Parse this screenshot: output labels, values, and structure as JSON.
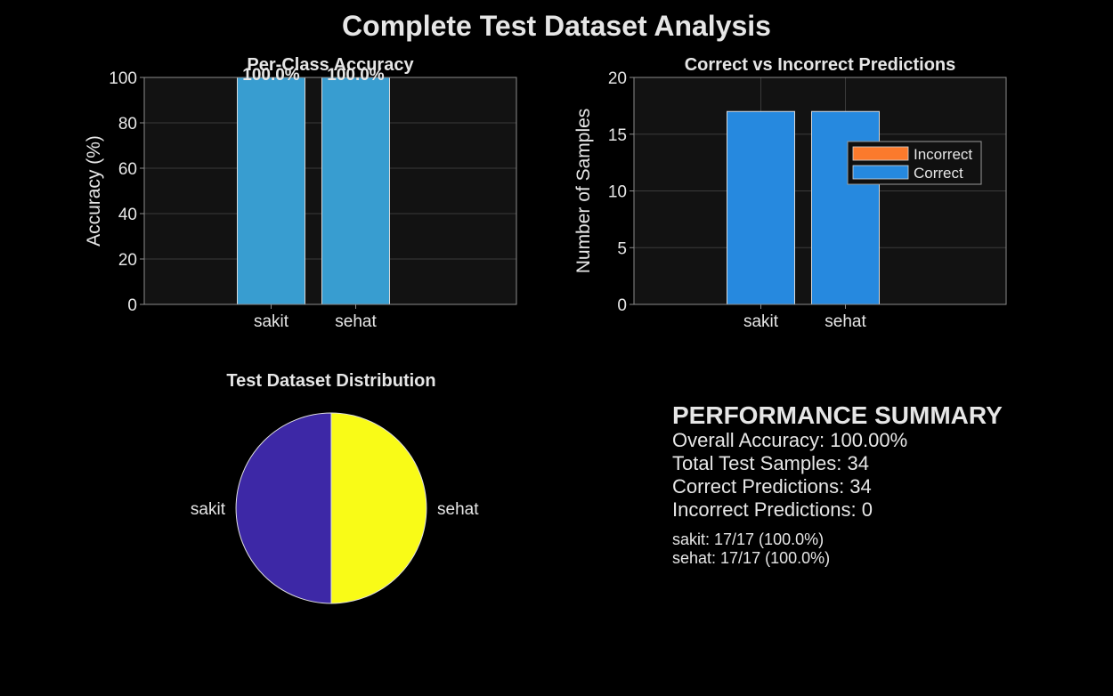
{
  "figure_title": "Complete Test Dataset Analysis",
  "colors": {
    "background": "#000000",
    "axes_bg": "#121212",
    "grid": "#3a3a3a",
    "axis_line": "#8c8c8c",
    "text": "#e6e6e6",
    "accuracy_bar": "#389dd0",
    "correct": "#2689df",
    "incorrect": "#fb7a2c",
    "pie": [
      "#3d28a6",
      "#f9fb17"
    ]
  },
  "chart_data": [
    {
      "type": "bar",
      "title": "Per-Class Accuracy",
      "categories": [
        "sakit",
        "sehat"
      ],
      "values": [
        100,
        100
      ],
      "data_labels": [
        "100.0%",
        "100.0%"
      ],
      "xlabel": "",
      "ylabel": "Accuracy (%)",
      "ylim": [
        0,
        100
      ],
      "yticks": [
        0,
        20,
        40,
        60,
        80,
        100
      ],
      "grid": true
    },
    {
      "type": "bar",
      "title": "Correct vs Incorrect Predictions",
      "categories": [
        "sakit",
        "sehat"
      ],
      "series": [
        {
          "name": "Correct",
          "values": [
            17,
            17
          ]
        },
        {
          "name": "Incorrect",
          "values": [
            0,
            0
          ]
        }
      ],
      "legend_order": [
        "Incorrect",
        "Correct"
      ],
      "legend_position": "right",
      "xlabel": "",
      "ylabel": "Number of Samples",
      "ylim": [
        0,
        20
      ],
      "yticks": [
        0,
        5,
        10,
        15,
        20
      ],
      "grid": true
    },
    {
      "type": "pie",
      "title": "Test Dataset Distribution",
      "labels": [
        "sakit",
        "sehat"
      ],
      "values": [
        17,
        17
      ]
    }
  ],
  "summary": {
    "heading": "PERFORMANCE SUMMARY",
    "overall_accuracy": "Overall Accuracy: 100.00%",
    "total_samples": "Total Test Samples: 34",
    "correct": "Correct Predictions: 34",
    "incorrect": "Incorrect Predictions: 0",
    "per_class": [
      "sakit: 17/17 (100.0%)",
      "sehat: 17/17 (100.0%)"
    ]
  }
}
